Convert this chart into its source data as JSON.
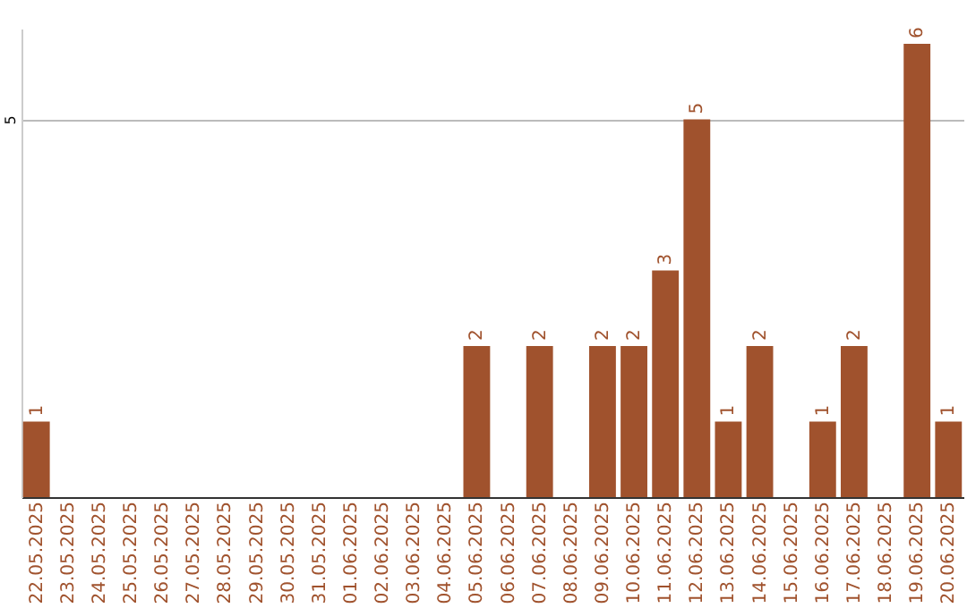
{
  "chart_data": {
    "type": "bar",
    "categories": [
      "22.05.2025",
      "23.05.2025",
      "24.05.2025",
      "25.05.2025",
      "26.05.2025",
      "27.05.2025",
      "28.05.2025",
      "29.05.2025",
      "30.05.2025",
      "31.05.2025",
      "01.06.2025",
      "02.06.2025",
      "03.06.2025",
      "04.06.2025",
      "05.06.2025",
      "06.06.2025",
      "07.06.2025",
      "08.06.2025",
      "09.06.2025",
      "10.06.2025",
      "11.06.2025",
      "12.06.2025",
      "13.06.2025",
      "14.06.2025",
      "15.06.2025",
      "16.06.2025",
      "17.06.2025",
      "18.06.2025",
      "19.06.2025",
      "20.06.2025"
    ],
    "values": [
      1,
      0,
      0,
      0,
      0,
      0,
      0,
      0,
      0,
      0,
      0,
      0,
      0,
      0,
      2,
      0,
      2,
      0,
      2,
      2,
      3,
      5,
      1,
      2,
      0,
      1,
      2,
      0,
      6,
      1
    ],
    "value_labels": [
      "1",
      null,
      null,
      null,
      null,
      null,
      null,
      null,
      null,
      null,
      null,
      null,
      null,
      null,
      "2",
      null,
      "2",
      null,
      "2",
      "2",
      "3",
      "5",
      "1",
      "2",
      null,
      "1",
      "2",
      null,
      "6",
      "1"
    ],
    "color": "#a0522d",
    "ylim": [
      0,
      6.2
    ],
    "yticks": [
      {
        "value": 0,
        "label": null
      },
      5
    ],
    "grid": "y"
  }
}
